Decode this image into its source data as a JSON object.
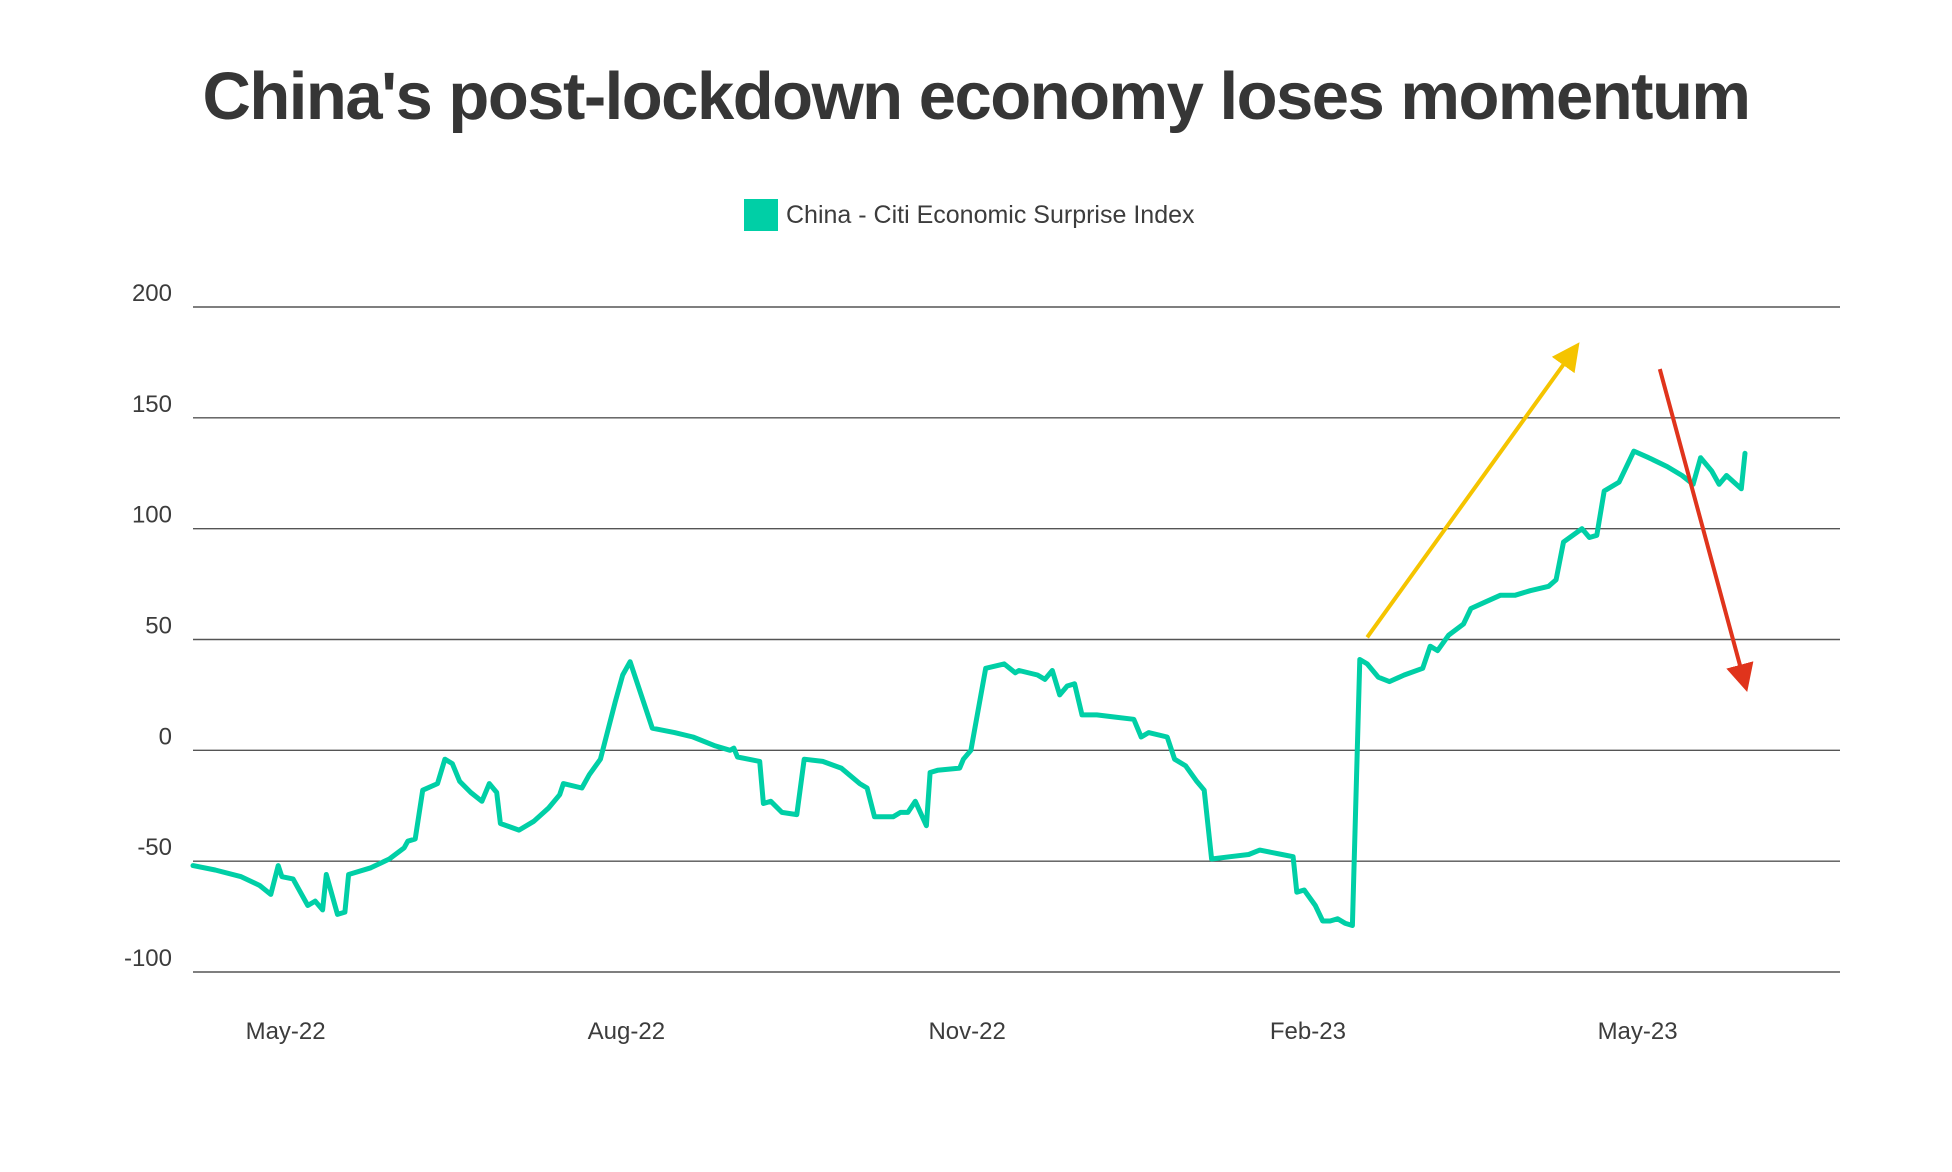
{
  "title": "China's post-lockdown economy loses momentum",
  "legend": {
    "label": "China - Citi Economic Surprise Index",
    "color": "#00cfa6"
  },
  "colors": {
    "series": "#00cfa6",
    "up_arrow": "#f5c400",
    "down_arrow": "#e0341c",
    "gridline": "#555555"
  },
  "chart_data": {
    "type": "line",
    "title": "China's post-lockdown economy loses momentum",
    "xlabel": "",
    "ylabel": "",
    "ylim": [
      -100,
      200
    ],
    "yticks": [
      200,
      150,
      100,
      50,
      0,
      -50,
      -100
    ],
    "ytick_labels": [
      "200",
      "150",
      "100",
      "50",
      "0",
      "-50",
      "-100"
    ],
    "xlim": [
      "2022-04-06",
      "2023-05-30"
    ],
    "xticks": [
      "2022-05-01",
      "2022-08-01",
      "2022-11-01",
      "2023-02-01",
      "2023-05-01"
    ],
    "xtick_labels": [
      "May-22",
      "Aug-22",
      "Nov-22",
      "Feb-23",
      "May-23"
    ],
    "grid": "horizontal",
    "legend_position": "top-center",
    "series": [
      {
        "name": "China - Citi Economic Surprise Index",
        "points": [
          [
            "2022-04-06",
            -52
          ],
          [
            "2022-04-12",
            -54
          ],
          [
            "2022-04-19",
            -57
          ],
          [
            "2022-04-24",
            -61
          ],
          [
            "2022-04-27",
            -65
          ],
          [
            "2022-04-29",
            -52
          ],
          [
            "2022-04-30",
            -57
          ],
          [
            "2022-05-03",
            -58
          ],
          [
            "2022-05-07",
            -70
          ],
          [
            "2022-05-09",
            -68
          ],
          [
            "2022-05-11",
            -72
          ],
          [
            "2022-05-12",
            -56
          ],
          [
            "2022-05-15",
            -74
          ],
          [
            "2022-05-17",
            -73
          ],
          [
            "2022-05-18",
            -56
          ],
          [
            "2022-05-24",
            -53
          ],
          [
            "2022-05-29",
            -49
          ],
          [
            "2022-06-02",
            -44
          ],
          [
            "2022-06-03",
            -41
          ],
          [
            "2022-06-05",
            -40
          ],
          [
            "2022-06-07",
            -18
          ],
          [
            "2022-06-11",
            -15
          ],
          [
            "2022-06-13",
            -4
          ],
          [
            "2022-06-15",
            -6
          ],
          [
            "2022-06-17",
            -14
          ],
          [
            "2022-06-20",
            -19
          ],
          [
            "2022-06-23",
            -23
          ],
          [
            "2022-06-25",
            -15
          ],
          [
            "2022-06-27",
            -19
          ],
          [
            "2022-06-28",
            -33
          ],
          [
            "2022-07-03",
            -36
          ],
          [
            "2022-07-07",
            -32
          ],
          [
            "2022-07-11",
            -26
          ],
          [
            "2022-07-14",
            -20
          ],
          [
            "2022-07-15",
            -15
          ],
          [
            "2022-07-20",
            -17
          ],
          [
            "2022-07-22",
            -11
          ],
          [
            "2022-07-25",
            -4
          ],
          [
            "2022-07-29",
            22
          ],
          [
            "2022-07-31",
            34
          ],
          [
            "2022-08-02",
            40
          ],
          [
            "2022-08-08",
            10
          ],
          [
            "2022-08-14",
            8
          ],
          [
            "2022-08-19",
            6
          ],
          [
            "2022-08-25",
            2
          ],
          [
            "2022-08-29",
            0
          ],
          [
            "2022-08-30",
            1
          ],
          [
            "2022-08-31",
            -3
          ],
          [
            "2022-09-06",
            -5
          ],
          [
            "2022-09-07",
            -24
          ],
          [
            "2022-09-09",
            -23
          ],
          [
            "2022-09-12",
            -28
          ],
          [
            "2022-09-16",
            -29
          ],
          [
            "2022-09-18",
            -4
          ],
          [
            "2022-09-23",
            -5
          ],
          [
            "2022-09-28",
            -8
          ],
          [
            "2022-10-03",
            -15
          ],
          [
            "2022-10-05",
            -17
          ],
          [
            "2022-10-07",
            -30
          ],
          [
            "2022-10-12",
            -30
          ],
          [
            "2022-10-14",
            -28
          ],
          [
            "2022-10-16",
            -28
          ],
          [
            "2022-10-18",
            -23
          ],
          [
            "2022-10-21",
            -34
          ],
          [
            "2022-10-22",
            -10
          ],
          [
            "2022-10-24",
            -9
          ],
          [
            "2022-10-30",
            -8
          ],
          [
            "2022-10-31",
            -4
          ],
          [
            "2022-11-02",
            0
          ],
          [
            "2022-11-06",
            37
          ],
          [
            "2022-11-11",
            39
          ],
          [
            "2022-11-14",
            35
          ],
          [
            "2022-11-15",
            36
          ],
          [
            "2022-11-20",
            34
          ],
          [
            "2022-11-22",
            32
          ],
          [
            "2022-11-24",
            36
          ],
          [
            "2022-11-26",
            25
          ],
          [
            "2022-11-28",
            29
          ],
          [
            "2022-11-30",
            30
          ],
          [
            "2022-12-02",
            16
          ],
          [
            "2022-12-06",
            16
          ],
          [
            "2022-12-11",
            15
          ],
          [
            "2022-12-16",
            14
          ],
          [
            "2022-12-18",
            6
          ],
          [
            "2022-12-20",
            8
          ],
          [
            "2022-12-25",
            6
          ],
          [
            "2022-12-27",
            -4
          ],
          [
            "2022-12-30",
            -7
          ],
          [
            "2023-01-02",
            -14
          ],
          [
            "2023-01-04",
            -18
          ],
          [
            "2023-01-06",
            -49
          ],
          [
            "2023-01-11",
            -48
          ],
          [
            "2023-01-16",
            -47
          ],
          [
            "2023-01-19",
            -45
          ],
          [
            "2023-01-25",
            -47
          ],
          [
            "2023-01-28",
            -48
          ],
          [
            "2023-01-29",
            -64
          ],
          [
            "2023-01-31",
            -63
          ],
          [
            "2023-02-03",
            -70
          ],
          [
            "2023-02-05",
            -77
          ],
          [
            "2023-02-07",
            -77
          ],
          [
            "2023-02-09",
            -76
          ],
          [
            "2023-02-11",
            -78
          ],
          [
            "2023-02-13",
            -79
          ],
          [
            "2023-02-15",
            41
          ],
          [
            "2023-02-17",
            39
          ],
          [
            "2023-02-20",
            33
          ],
          [
            "2023-02-23",
            31
          ],
          [
            "2023-02-27",
            34
          ],
          [
            "2023-03-04",
            37
          ],
          [
            "2023-03-06",
            47
          ],
          [
            "2023-03-08",
            45
          ],
          [
            "2023-03-11",
            52
          ],
          [
            "2023-03-15",
            57
          ],
          [
            "2023-03-17",
            64
          ],
          [
            "2023-03-21",
            67
          ],
          [
            "2023-03-25",
            70
          ],
          [
            "2023-03-29",
            70
          ],
          [
            "2023-04-02",
            72
          ],
          [
            "2023-04-07",
            74
          ],
          [
            "2023-04-09",
            77
          ],
          [
            "2023-04-11",
            94
          ],
          [
            "2023-04-16",
            100
          ],
          [
            "2023-04-18",
            96
          ],
          [
            "2023-04-20",
            97
          ],
          [
            "2023-04-22",
            117
          ],
          [
            "2023-04-26",
            121
          ],
          [
            "2023-04-30",
            135
          ],
          [
            "2023-05-04",
            132
          ],
          [
            "2023-05-09",
            128
          ],
          [
            "2023-05-13",
            124
          ],
          [
            "2023-05-16",
            120
          ],
          [
            "2023-05-18",
            132
          ],
          [
            "2023-05-21",
            126
          ],
          [
            "2023-05-23",
            120
          ],
          [
            "2023-05-25",
            124
          ],
          [
            "2023-05-29",
            118
          ],
          [
            "2023-05-30",
            134
          ]
        ]
      }
    ],
    "annotations": [
      {
        "type": "arrow",
        "color": "#f5c400",
        "from": [
          "2023-02-17",
          51
        ],
        "to": [
          "2023-04-14",
          181
        ]
      },
      {
        "type": "arrow",
        "color": "#e0341c",
        "from": [
          "2023-05-07",
          172
        ],
        "to": [
          "2023-05-30",
          30
        ]
      }
    ]
  }
}
